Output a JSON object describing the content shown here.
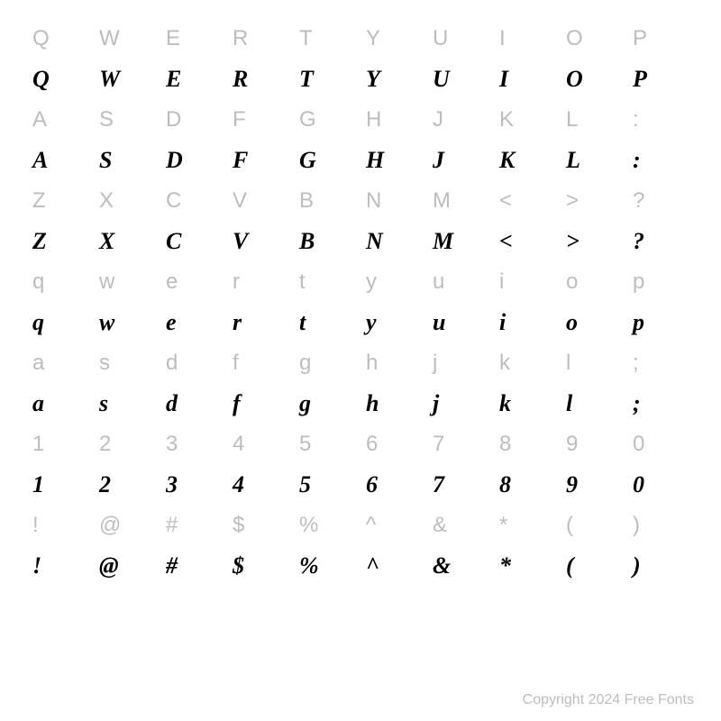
{
  "rows": [
    {
      "type": "ref",
      "chars": [
        "Q",
        "W",
        "E",
        "R",
        "T",
        "Y",
        "U",
        "I",
        "O",
        "P"
      ]
    },
    {
      "type": "script",
      "chars": [
        "Q",
        "W",
        "E",
        "R",
        "T",
        "Y",
        "U",
        "I",
        "O",
        "P"
      ]
    },
    {
      "type": "ref",
      "chars": [
        "A",
        "S",
        "D",
        "F",
        "G",
        "H",
        "J",
        "K",
        "L",
        ":"
      ]
    },
    {
      "type": "script",
      "chars": [
        "A",
        "S",
        "D",
        "F",
        "G",
        "H",
        "J",
        "K",
        "L",
        ":"
      ]
    },
    {
      "type": "ref",
      "chars": [
        "Z",
        "X",
        "C",
        "V",
        "B",
        "N",
        "M",
        "<",
        ">",
        "?"
      ]
    },
    {
      "type": "script",
      "chars": [
        "Z",
        "X",
        "C",
        "V",
        "B",
        "N",
        "M",
        "<",
        ">",
        "?"
      ]
    },
    {
      "type": "ref",
      "chars": [
        "q",
        "w",
        "e",
        "r",
        "t",
        "y",
        "u",
        "i",
        "o",
        "p"
      ]
    },
    {
      "type": "script",
      "chars": [
        "q",
        "w",
        "e",
        "r",
        "t",
        "y",
        "u",
        "i",
        "o",
        "p"
      ]
    },
    {
      "type": "ref",
      "chars": [
        "a",
        "s",
        "d",
        "f",
        "g",
        "h",
        "j",
        "k",
        "l",
        ";"
      ]
    },
    {
      "type": "script",
      "chars": [
        "a",
        "s",
        "d",
        "f",
        "g",
        "h",
        "j",
        "k",
        "l",
        ";"
      ]
    },
    {
      "type": "ref",
      "chars": [
        "1",
        "2",
        "3",
        "4",
        "5",
        "6",
        "7",
        "8",
        "9",
        "0"
      ]
    },
    {
      "type": "script",
      "chars": [
        "1",
        "2",
        "3",
        "4",
        "5",
        "6",
        "7",
        "8",
        "9",
        "0"
      ]
    },
    {
      "type": "ref",
      "chars": [
        "!",
        "@",
        "#",
        "$",
        "%",
        "^",
        "&",
        "*",
        "(",
        ")"
      ]
    },
    {
      "type": "script",
      "chars": [
        "!",
        "@",
        "#",
        "$",
        "%",
        "^",
        "&",
        "*",
        "(",
        ")"
      ]
    }
  ],
  "copyright": "Copyright 2024 Free Fonts",
  "styling": {
    "background_color": "#ffffff",
    "ref_color": "#bdbdbd",
    "ref_fontsize": 24,
    "ref_fontweight": 400,
    "script_color": "#000000",
    "script_fontsize": 26,
    "script_fontweight": 700,
    "script_style": "italic",
    "copyright_color": "#bdbdbd",
    "copyright_fontsize": 16,
    "columns": 10,
    "rows_count": 14,
    "cell_align": "left"
  }
}
